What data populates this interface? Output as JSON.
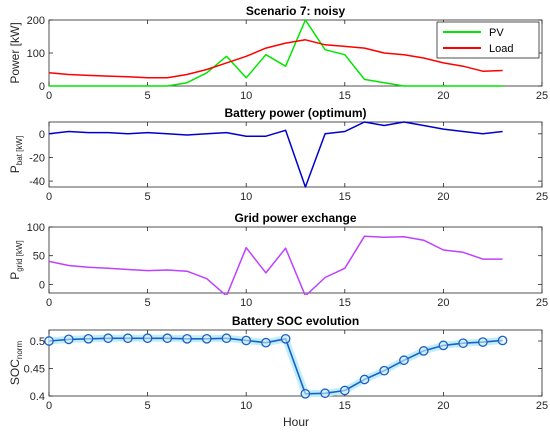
{
  "figure": {
    "xlabel": "Hour"
  },
  "chart_data": [
    {
      "type": "line",
      "title": "Scenario 7: noisy",
      "ylabel": "Power [kW]",
      "xlim": [
        0,
        25
      ],
      "ylim": [
        0,
        200
      ],
      "xticks": [
        "0",
        "5",
        "10",
        "15",
        "20",
        "25"
      ],
      "yticks": [
        "0",
        "100",
        "200"
      ],
      "x": [
        0,
        1,
        2,
        3,
        4,
        5,
        6,
        7,
        8,
        9,
        10,
        11,
        12,
        13,
        14,
        15,
        16,
        17,
        18,
        19,
        20,
        21,
        22,
        23
      ],
      "legend": {
        "position": "top-right",
        "box": true
      },
      "series": [
        {
          "name": "PV",
          "color": "#00e600",
          "values": [
            0,
            0,
            0,
            0,
            0,
            0,
            0,
            10,
            40,
            90,
            25,
            95,
            60,
            200,
            110,
            95,
            20,
            10,
            0,
            0,
            0,
            0,
            0,
            0
          ]
        },
        {
          "name": "Load",
          "color": "#ff0000",
          "values": [
            40,
            35,
            32,
            30,
            28,
            25,
            25,
            35,
            50,
            70,
            90,
            115,
            130,
            140,
            125,
            120,
            115,
            100,
            95,
            85,
            70,
            60,
            45,
            47
          ]
        }
      ]
    },
    {
      "type": "line",
      "title": "Battery power (optimum)",
      "ylabel": "P_bat [kW]",
      "xlim": [
        0,
        25
      ],
      "ylim": [
        -45,
        10
      ],
      "xticks": [
        "0",
        "5",
        "10",
        "15",
        "20",
        "25"
      ],
      "yticks": [
        "-40",
        "-20",
        "0"
      ],
      "x": [
        0,
        1,
        2,
        3,
        4,
        5,
        6,
        7,
        8,
        9,
        10,
        11,
        12,
        13,
        14,
        15,
        16,
        17,
        18,
        19,
        20,
        21,
        22,
        23
      ],
      "series": [
        {
          "color": "#0000cd",
          "values": [
            0,
            2,
            1,
            1,
            0,
            1,
            0,
            -1,
            0,
            1,
            -2,
            -2,
            3,
            -45,
            0,
            2,
            10,
            7,
            10,
            7,
            4,
            2,
            0,
            2
          ]
        }
      ]
    },
    {
      "type": "line",
      "title": "Grid power exchange",
      "ylabel": "P_grid [kW]",
      "xlim": [
        0,
        25
      ],
      "ylim": [
        -15,
        100
      ],
      "xticks": [
        "0",
        "5",
        "10",
        "15",
        "20",
        "25"
      ],
      "yticks": [
        "0",
        "50",
        "100"
      ],
      "x": [
        0,
        1,
        2,
        3,
        4,
        5,
        6,
        7,
        8,
        9,
        10,
        11,
        12,
        13,
        14,
        15,
        16,
        17,
        18,
        19,
        20,
        21,
        22,
        23
      ],
      "series": [
        {
          "color": "#bf40ff",
          "values": [
            40,
            33,
            30,
            28,
            26,
            24,
            25,
            23,
            10,
            -20,
            64,
            20,
            63,
            -20,
            12,
            28,
            84,
            82,
            83,
            77,
            60,
            56,
            44,
            44
          ]
        }
      ]
    },
    {
      "type": "line",
      "title": "Battery SOC evolution",
      "ylabel": "SOC_norm",
      "xlim": [
        0,
        25
      ],
      "ylim": [
        0.4,
        0.52
      ],
      "xticks": [
        "0",
        "5",
        "10",
        "15",
        "20",
        "25"
      ],
      "yticks": [
        "0.4",
        "0.45",
        "0.5"
      ],
      "x": [
        0,
        1,
        2,
        3,
        4,
        5,
        6,
        7,
        8,
        9,
        10,
        11,
        12,
        13,
        14,
        15,
        16,
        17,
        18,
        19,
        20,
        21,
        22,
        23
      ],
      "markers": "circle",
      "series": [
        {
          "color": "#1f5fbf",
          "values": [
            0.5,
            0.503,
            0.504,
            0.505,
            0.505,
            0.505,
            0.505,
            0.504,
            0.504,
            0.505,
            0.501,
            0.497,
            0.504,
            0.404,
            0.405,
            0.41,
            0.43,
            0.446,
            0.465,
            0.482,
            0.492,
            0.496,
            0.498,
            0.501
          ]
        }
      ]
    }
  ]
}
